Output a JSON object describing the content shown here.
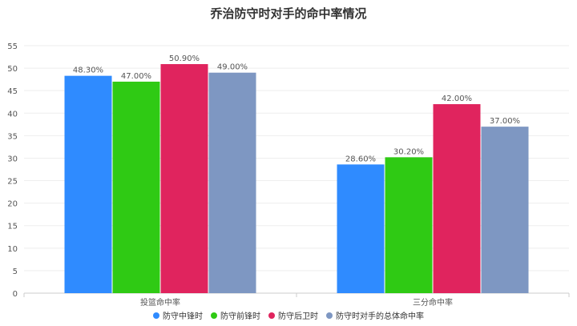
{
  "chart_data": {
    "type": "bar",
    "title": "乔治防守时对手的命中率情况",
    "categories": [
      "投篮命中率",
      "三分命中率"
    ],
    "series": [
      {
        "name": "防守中锋时",
        "color": "#2F8BFF",
        "values": [
          48.3,
          28.6
        ],
        "labels": [
          "48.30%",
          "28.60%"
        ]
      },
      {
        "name": "防守前锋时",
        "color": "#2FCA14",
        "values": [
          47.0,
          30.2
        ],
        "labels": [
          "47.00%",
          "30.20%"
        ]
      },
      {
        "name": "防守后卫时",
        "color": "#E0245E",
        "values": [
          50.9,
          42.0
        ],
        "labels": [
          "50.90%",
          "42.00%"
        ]
      },
      {
        "name": "防守时对手的总体命中率",
        "color": "#7E97C2",
        "values": [
          49.0,
          37.0
        ],
        "labels": [
          "49.00%",
          "37.00%"
        ]
      }
    ],
    "ylim": [
      0,
      55
    ],
    "yticks": [
      0,
      5,
      10,
      15,
      20,
      25,
      30,
      35,
      40,
      45,
      50,
      55
    ],
    "grid": true,
    "legend_position": "bottom"
  }
}
